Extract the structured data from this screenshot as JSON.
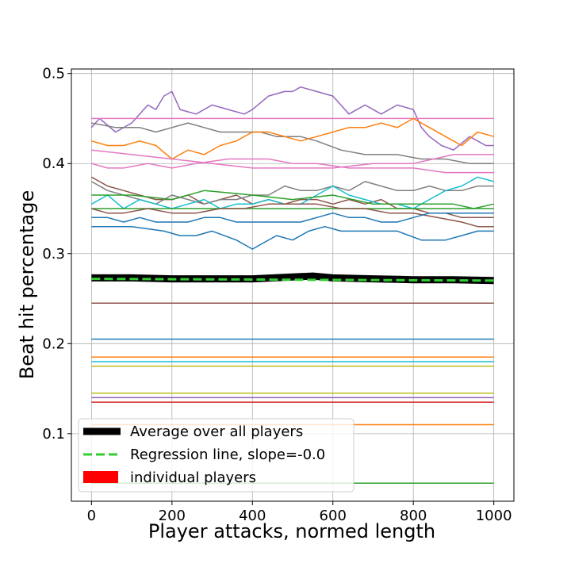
{
  "chart_data": {
    "type": "line",
    "title": "",
    "xlabel": "Player attacks, normed length",
    "ylabel": "Beat hit percentage",
    "xlim": [
      -50,
      1050
    ],
    "ylim": [
      0.025,
      0.505
    ],
    "xticks": [
      0,
      200,
      400,
      600,
      800,
      1000
    ],
    "yticks": [
      0.1,
      0.2,
      0.3,
      0.4,
      0.5
    ],
    "grid": true,
    "legend": {
      "placement": "lower-left",
      "entries": [
        {
          "label": "Average over all players",
          "color": "#000000",
          "style": "thick-solid"
        },
        {
          "label": "Regression line, slope=-0.0",
          "color": "#32cd32",
          "style": "dashed"
        },
        {
          "label": "individual players",
          "color": "#ff0000",
          "style": "patch"
        }
      ]
    },
    "average": {
      "x": [
        0,
        100,
        200,
        300,
        400,
        500,
        550,
        600,
        700,
        800,
        900,
        1000
      ],
      "y": [
        0.273,
        0.273,
        0.272,
        0.272,
        0.272,
        0.274,
        0.275,
        0.273,
        0.272,
        0.271,
        0.271,
        0.27
      ]
    },
    "regression": {
      "x": [
        0,
        1000
      ],
      "y": [
        0.272,
        0.27
      ]
    },
    "series": [
      {
        "color": "#9467bd",
        "x": [
          0,
          20,
          60,
          100,
          140,
          160,
          180,
          200,
          220,
          260,
          300,
          340,
          380,
          400,
          440,
          480,
          500,
          520,
          560,
          600,
          640,
          680,
          720,
          760,
          800,
          820,
          840,
          870,
          900,
          940,
          960,
          980,
          1000
        ],
        "y": [
          0.44,
          0.45,
          0.435,
          0.445,
          0.465,
          0.46,
          0.475,
          0.48,
          0.46,
          0.455,
          0.465,
          0.46,
          0.455,
          0.46,
          0.475,
          0.48,
          0.48,
          0.485,
          0.48,
          0.475,
          0.455,
          0.465,
          0.455,
          0.465,
          0.46,
          0.44,
          0.43,
          0.42,
          0.415,
          0.43,
          0.425,
          0.42,
          0.42
        ]
      },
      {
        "color": "#e377c2",
        "x": [
          0,
          1000
        ],
        "y": [
          0.45,
          0.45
        ]
      },
      {
        "color": "#7f7f7f",
        "x": [
          0,
          60,
          120,
          160,
          200,
          240,
          280,
          320,
          420,
          460,
          520,
          560,
          620,
          680,
          760,
          820,
          880,
          940,
          1000
        ],
        "y": [
          0.445,
          0.44,
          0.44,
          0.435,
          0.44,
          0.445,
          0.44,
          0.435,
          0.435,
          0.43,
          0.43,
          0.425,
          0.415,
          0.41,
          0.41,
          0.405,
          0.405,
          0.4,
          0.4
        ]
      },
      {
        "color": "#ff7f0e",
        "x": [
          0,
          40,
          80,
          120,
          160,
          200,
          240,
          280,
          320,
          360,
          400,
          440,
          480,
          520,
          560,
          600,
          640,
          680,
          720,
          760,
          800,
          840,
          880,
          920,
          960,
          1000
        ],
        "y": [
          0.425,
          0.42,
          0.42,
          0.425,
          0.42,
          0.405,
          0.415,
          0.41,
          0.42,
          0.425,
          0.435,
          0.435,
          0.43,
          0.425,
          0.43,
          0.435,
          0.44,
          0.44,
          0.445,
          0.44,
          0.45,
          0.44,
          0.43,
          0.42,
          0.435,
          0.43
        ]
      },
      {
        "color": "#e377c2",
        "x": [
          0,
          100,
          200,
          300,
          400,
          500,
          600,
          700,
          800,
          900,
          1000
        ],
        "y": [
          0.415,
          0.41,
          0.405,
          0.4,
          0.395,
          0.395,
          0.395,
          0.4,
          0.4,
          0.41,
          0.41
        ]
      },
      {
        "color": "#e377c2",
        "x": [
          0,
          40,
          80,
          140,
          200,
          260,
          340,
          400,
          440,
          500,
          560,
          640,
          720,
          800,
          880,
          940,
          1000
        ],
        "y": [
          0.4,
          0.395,
          0.395,
          0.4,
          0.395,
          0.4,
          0.405,
          0.405,
          0.405,
          0.4,
          0.4,
          0.395,
          0.395,
          0.395,
          0.39,
          0.39,
          0.39
        ]
      },
      {
        "color": "#8c564b",
        "x": [
          0,
          40,
          80,
          120,
          160,
          200,
          240,
          280,
          320,
          360,
          400,
          440,
          480,
          520,
          560,
          600,
          640,
          680,
          720,
          760,
          800,
          840,
          880,
          920,
          960,
          1000
        ],
        "y": [
          0.385,
          0.375,
          0.37,
          0.365,
          0.36,
          0.36,
          0.365,
          0.355,
          0.36,
          0.365,
          0.355,
          0.36,
          0.355,
          0.36,
          0.36,
          0.355,
          0.36,
          0.355,
          0.36,
          0.35,
          0.35,
          0.345,
          0.345,
          0.34,
          0.34,
          0.34
        ]
      },
      {
        "color": "#7f7f7f",
        "x": [
          0,
          40,
          80,
          120,
          160,
          200,
          240,
          280,
          320,
          360,
          400,
          440,
          480,
          520,
          560,
          600,
          640,
          680,
          720,
          760,
          800,
          840,
          880,
          920,
          960,
          1000
        ],
        "y": [
          0.38,
          0.37,
          0.365,
          0.36,
          0.355,
          0.365,
          0.36,
          0.355,
          0.36,
          0.36,
          0.365,
          0.365,
          0.375,
          0.37,
          0.37,
          0.375,
          0.37,
          0.38,
          0.375,
          0.37,
          0.37,
          0.375,
          0.37,
          0.37,
          0.375,
          0.375
        ]
      },
      {
        "color": "#17becf",
        "x": [
          0,
          40,
          80,
          120,
          160,
          200,
          240,
          280,
          320,
          360,
          400,
          440,
          480,
          520,
          560,
          600,
          640,
          680,
          720,
          760,
          800,
          840,
          880,
          920,
          960,
          1000
        ],
        "y": [
          0.355,
          0.365,
          0.35,
          0.36,
          0.355,
          0.35,
          0.355,
          0.36,
          0.35,
          0.355,
          0.355,
          0.36,
          0.355,
          0.355,
          0.365,
          0.375,
          0.365,
          0.36,
          0.355,
          0.355,
          0.35,
          0.36,
          0.37,
          0.375,
          0.385,
          0.38
        ]
      },
      {
        "color": "#2ca02c",
        "x": [
          0,
          100,
          200,
          280,
          400,
          500,
          600,
          700,
          800,
          900,
          950,
          1000
        ],
        "y": [
          0.365,
          0.365,
          0.36,
          0.37,
          0.365,
          0.36,
          0.365,
          0.355,
          0.355,
          0.355,
          0.35,
          0.355
        ]
      },
      {
        "color": "#2ca02c",
        "x": [
          0,
          1000
        ],
        "y": [
          0.35,
          0.35
        ]
      },
      {
        "color": "#8c564b",
        "x": [
          0,
          40,
          80,
          140,
          200,
          260,
          320,
          380,
          440,
          500,
          560,
          620,
          680,
          740,
          800,
          860,
          920,
          960,
          1000
        ],
        "y": [
          0.35,
          0.345,
          0.345,
          0.35,
          0.345,
          0.345,
          0.35,
          0.35,
          0.355,
          0.355,
          0.355,
          0.35,
          0.35,
          0.345,
          0.345,
          0.34,
          0.335,
          0.33,
          0.33
        ]
      },
      {
        "color": "#1f77b4",
        "x": [
          0,
          40,
          80,
          120,
          160,
          200,
          240,
          280,
          320,
          360,
          400,
          440,
          480,
          520,
          560,
          600,
          640,
          680,
          720,
          760,
          800,
          840,
          880,
          920,
          960,
          1000
        ],
        "y": [
          0.34,
          0.34,
          0.335,
          0.34,
          0.335,
          0.335,
          0.335,
          0.34,
          0.34,
          0.335,
          0.335,
          0.335,
          0.335,
          0.335,
          0.34,
          0.345,
          0.34,
          0.34,
          0.335,
          0.335,
          0.34,
          0.345,
          0.345,
          0.345,
          0.345,
          0.345
        ]
      },
      {
        "color": "#1f77b4",
        "x": [
          0,
          100,
          180,
          220,
          260,
          300,
          360,
          380,
          400,
          420,
          460,
          500,
          540,
          580,
          620,
          660,
          700,
          760,
          820,
          880,
          920,
          960,
          1000
        ],
        "y": [
          0.33,
          0.33,
          0.325,
          0.32,
          0.32,
          0.325,
          0.315,
          0.31,
          0.305,
          0.31,
          0.32,
          0.315,
          0.325,
          0.33,
          0.325,
          0.325,
          0.325,
          0.325,
          0.315,
          0.315,
          0.32,
          0.325,
          0.325
        ]
      },
      {
        "color": "#8c564b",
        "x": [
          0,
          1000
        ],
        "y": [
          0.245,
          0.245
        ]
      },
      {
        "color": "#1f77b4",
        "x": [
          0,
          1000
        ],
        "y": [
          0.205,
          0.205
        ]
      },
      {
        "color": "#ff7f0e",
        "x": [
          0,
          1000
        ],
        "y": [
          0.185,
          0.185
        ]
      },
      {
        "color": "#17becf",
        "x": [
          0,
          1000
        ],
        "y": [
          0.18,
          0.18
        ]
      },
      {
        "color": "#bcbd22",
        "x": [
          0,
          1000
        ],
        "y": [
          0.175,
          0.175
        ]
      },
      {
        "color": "#bcbd22",
        "x": [
          0,
          1000
        ],
        "y": [
          0.145,
          0.145
        ]
      },
      {
        "color": "#9467bd",
        "x": [
          0,
          1000
        ],
        "y": [
          0.14,
          0.14
        ]
      },
      {
        "color": "#d62728",
        "x": [
          0,
          1000
        ],
        "y": [
          0.135,
          0.135
        ]
      },
      {
        "color": "#ff7f0e",
        "x": [
          0,
          1000
        ],
        "y": [
          0.11,
          0.11
        ]
      },
      {
        "color": "#2ca02c",
        "x": [
          0,
          1000
        ],
        "y": [
          0.045,
          0.045
        ]
      }
    ]
  }
}
